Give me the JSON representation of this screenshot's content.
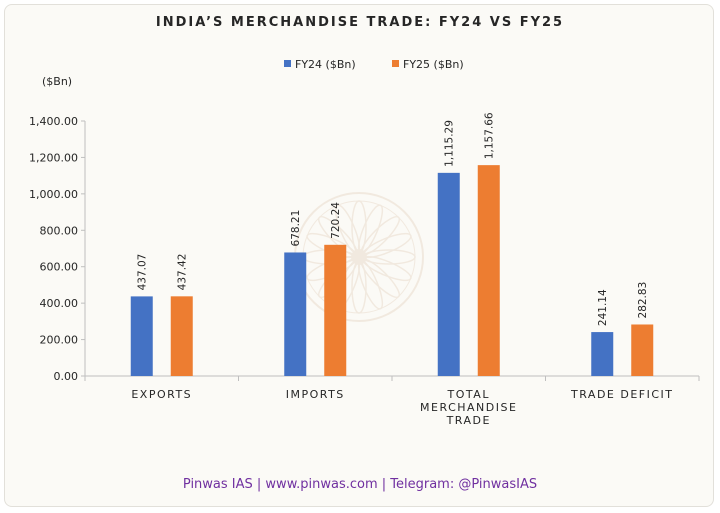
{
  "page": {
    "footer": "Pinwas IAS | www.pinwas.com | Telegram: @PinwasIAS"
  },
  "colors": {
    "fy24": "#4472c4",
    "fy25": "#ed7d31",
    "axis": "#bfbfbf",
    "text": "#262626",
    "footer": "#7030a0"
  },
  "watermark": {
    "icon": "lotus-logo-icon"
  },
  "chart_data": {
    "type": "bar",
    "title": "INDIA’S MERCHANDISE TRADE: FY24 VS FY25",
    "ylabel": "($Bn)",
    "xlabel": "",
    "ylim": [
      0,
      1400
    ],
    "yticks": [
      "0.00",
      "200.00",
      "400.00",
      "600.00",
      "800.00",
      "1,000.00",
      "1,200.00",
      "1,400.00"
    ],
    "grid": false,
    "legend_position": "top-center",
    "categories": [
      [
        "EXPORTS"
      ],
      [
        "IMPORTS"
      ],
      [
        "TOTAL",
        "MERCHANDISE",
        "TRADE"
      ],
      [
        "TRADE DEFICIT"
      ]
    ],
    "series": [
      {
        "name": "FY24 ($Bn)",
        "color": "#4472c4",
        "values": [
          437.07,
          678.21,
          1115.29,
          241.14
        ],
        "labels": [
          "437.07",
          "678.21",
          "1,115.29",
          "241.14"
        ]
      },
      {
        "name": "FY25 ($Bn)",
        "color": "#ed7d31",
        "values": [
          437.42,
          720.24,
          1157.66,
          282.83
        ],
        "labels": [
          "437.42",
          "720.24",
          "1,157.66",
          "282.83"
        ]
      }
    ]
  }
}
